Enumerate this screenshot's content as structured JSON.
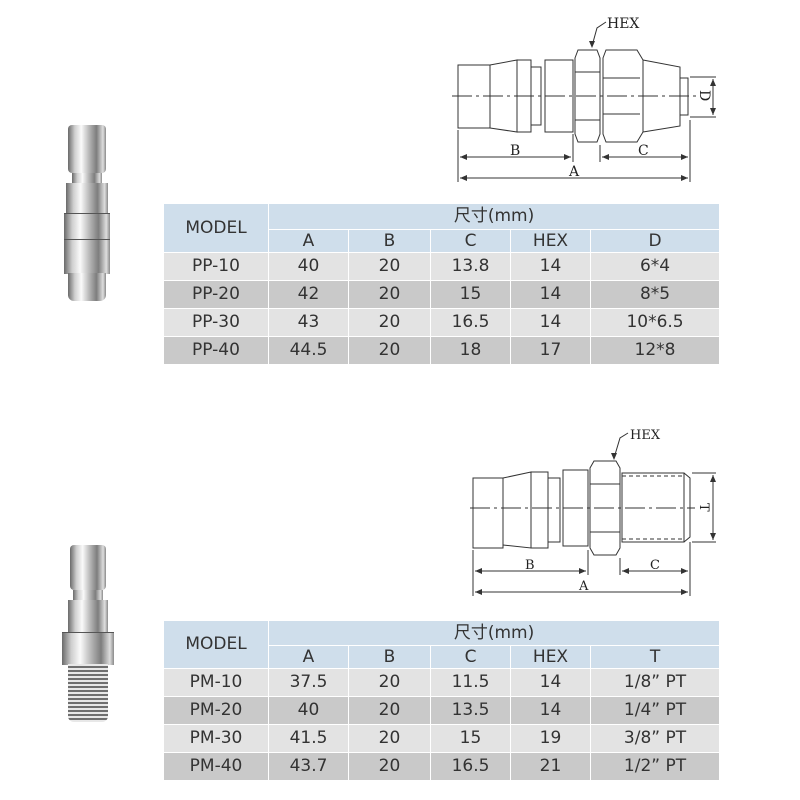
{
  "section_pp": {
    "diagram": {
      "hex_label": "HEX",
      "dim_a": "A",
      "dim_b": "B",
      "dim_c": "C",
      "dim_d": "D"
    },
    "table": {
      "model_header": "MODEL",
      "group_header": "尺寸(mm)",
      "columns": [
        "A",
        "B",
        "C",
        "HEX",
        "D"
      ],
      "rows": [
        [
          "PP-10",
          "40",
          "20",
          "13.8",
          "14",
          "6*4"
        ],
        [
          "PP-20",
          "42",
          "20",
          "15",
          "14",
          "8*5"
        ],
        [
          "PP-30",
          "43",
          "20",
          "16.5",
          "14",
          "10*6.5"
        ],
        [
          "PP-40",
          "44.5",
          "20",
          "18",
          "17",
          "12*8"
        ]
      ]
    }
  },
  "section_pm": {
    "diagram": {
      "hex_label": "HEX",
      "dim_a": "A",
      "dim_b": "B",
      "dim_c": "C",
      "dim_t": "T"
    },
    "table": {
      "model_header": "MODEL",
      "group_header": "尺寸(mm)",
      "columns": [
        "A",
        "B",
        "C",
        "HEX",
        "T"
      ],
      "rows": [
        [
          "PM-10",
          "37.5",
          "20",
          "11.5",
          "14",
          "1/8” PT"
        ],
        [
          "PM-20",
          "40",
          "20",
          "13.5",
          "14",
          "1/4” PT"
        ],
        [
          "PM-30",
          "41.5",
          "20",
          "15",
          "19",
          "3/8” PT"
        ],
        [
          "PM-40",
          "43.7",
          "20",
          "16.5",
          "21",
          "1/2” PT"
        ]
      ]
    }
  },
  "colors": {
    "header_bg": "#cfdeeb",
    "row_light": "#e3e3e3",
    "row_dark": "#c9c9c9"
  }
}
